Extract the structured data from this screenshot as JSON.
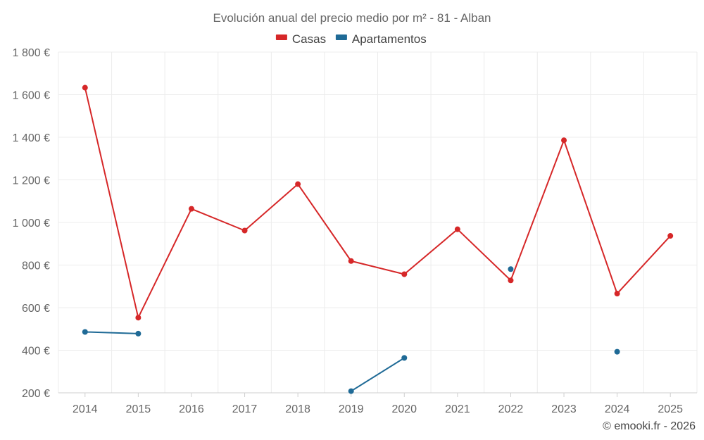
{
  "chart_data": {
    "type": "line",
    "title": "Evolución anual del precio medio por m² - 81 - Alban",
    "categories": [
      "2014",
      "2015",
      "2016",
      "2017",
      "2018",
      "2019",
      "2020",
      "2021",
      "2022",
      "2023",
      "2024",
      "2025"
    ],
    "series": [
      {
        "name": "Casas",
        "color": "#d62728",
        "values": [
          1633,
          553,
          1064,
          962,
          1180,
          819,
          757,
          968,
          728,
          1386,
          666,
          937
        ]
      },
      {
        "name": "Apartamentos",
        "color": "#1f6a96",
        "values": [
          486,
          478,
          null,
          null,
          null,
          208,
          364,
          null,
          781,
          null,
          393,
          null
        ]
      }
    ],
    "ylim": [
      200,
      1800
    ],
    "yticks": [
      200,
      400,
      600,
      800,
      1000,
      1200,
      1400,
      1600,
      1800
    ],
    "ytick_labels": [
      "200 €",
      "400 €",
      "600 €",
      "800 €",
      "1 000 €",
      "1 200 €",
      "1 400 €",
      "1 600 €",
      "1 800 €"
    ],
    "xlabel": "",
    "ylabel": "",
    "legend_position": "top-center",
    "grid": true
  },
  "credit": "© emooki.fr - 2026"
}
